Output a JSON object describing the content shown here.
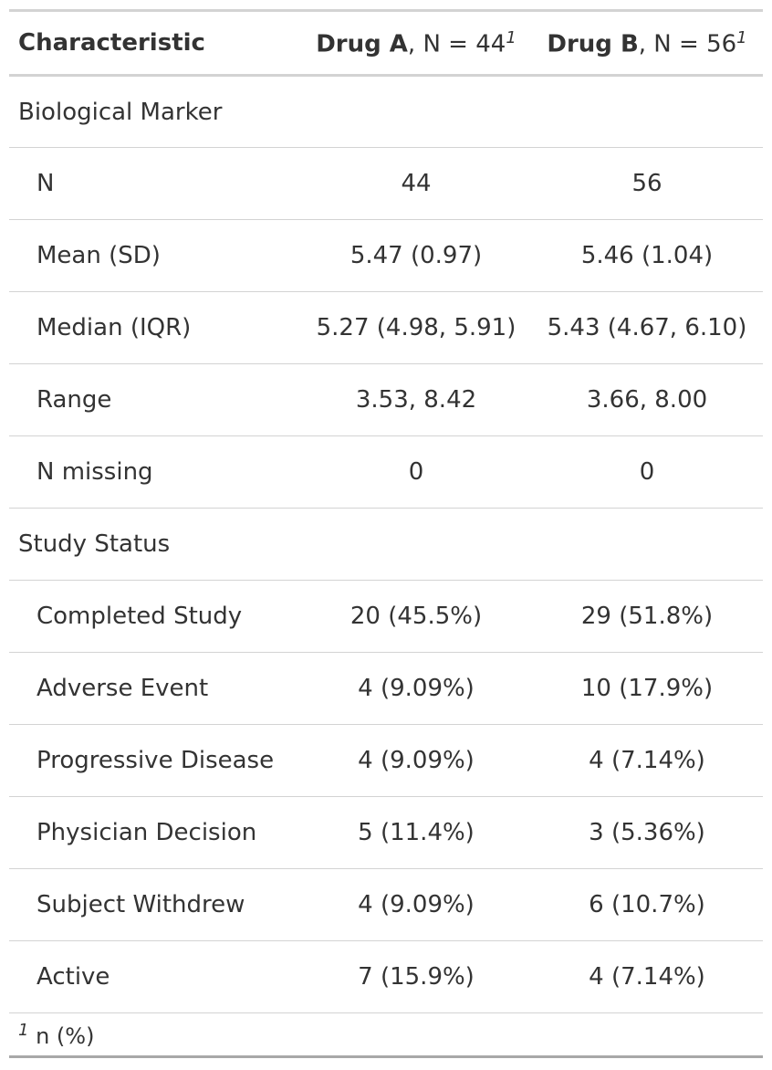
{
  "header": {
    "label": "Characteristic",
    "columns": [
      {
        "name": "Drug A",
        "n": ", N = 44",
        "footnote_mark": "1"
      },
      {
        "name": "Drug B",
        "n": ", N = 56",
        "footnote_mark": "1"
      }
    ]
  },
  "groups": [
    {
      "label": "Biological Marker",
      "rows": [
        [
          "N",
          "44",
          "56"
        ],
        [
          "Mean (SD)",
          "5.47 (0.97)",
          "5.46 (1.04)"
        ],
        [
          "Median (IQR)",
          "5.27 (4.98, 5.91)",
          "5.43 (4.67, 6.10)"
        ],
        [
          "Range",
          "3.53, 8.42",
          "3.66, 8.00"
        ],
        [
          "N missing",
          "0",
          "0"
        ]
      ]
    },
    {
      "label": "Study Status",
      "rows": [
        [
          "Completed Study",
          "20 (45.5%)",
          "29 (51.8%)"
        ],
        [
          "Adverse Event",
          "4 (9.09%)",
          "10 (17.9%)"
        ],
        [
          "Progressive Disease",
          "4 (9.09%)",
          "4 (7.14%)"
        ],
        [
          "Physician Decision",
          "5 (11.4%)",
          "3 (5.36%)"
        ],
        [
          "Subject Withdrew",
          "4 (9.09%)",
          "6 (10.7%)"
        ],
        [
          "Active",
          "7 (15.9%)",
          "4 (7.14%)"
        ]
      ]
    }
  ],
  "footnote": {
    "mark": "1",
    "text": "n (%)"
  }
}
